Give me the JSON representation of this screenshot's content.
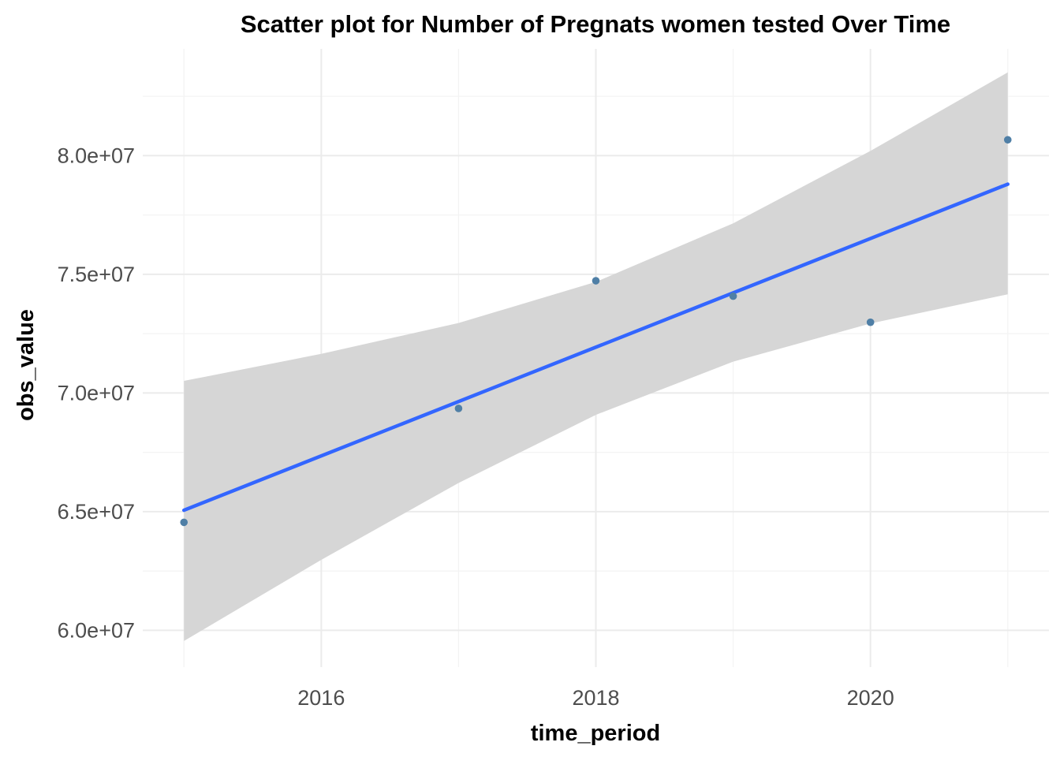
{
  "chart_data": {
    "type": "scatter",
    "title": "Scatter plot for Number of Pregnats women tested Over Time",
    "xlabel": "time_period",
    "ylabel": "obs_value",
    "x": [
      2015,
      2016,
      2017,
      2018,
      2019,
      2020,
      2021
    ],
    "y": [
      64550000,
      null,
      69350000,
      74730000,
      74080000,
      72980000,
      80670000
    ],
    "points": [
      {
        "x": 2015,
        "y": 64550000
      },
      {
        "x": 2017,
        "y": 69350000
      },
      {
        "x": 2018,
        "y": 74730000
      },
      {
        "x": 2019,
        "y": 74080000
      },
      {
        "x": 2020,
        "y": 72980000
      },
      {
        "x": 2021,
        "y": 80670000
      }
    ],
    "trend_line": {
      "method": "linear regression",
      "x": [
        2015,
        2021
      ],
      "y": [
        65060000,
        78800000
      ],
      "confidence_band": {
        "x": [
          2015,
          2016,
          2017,
          2018,
          2019,
          2020,
          2021
        ],
        "upper": [
          70510000,
          71650000,
          72950000,
          74680000,
          77150000,
          80200000,
          83510000
        ],
        "lower": [
          59550000,
          62970000,
          66210000,
          69080000,
          71320000,
          72930000,
          74160000
        ]
      }
    },
    "x_ticks": [
      2016,
      2018,
      2020
    ],
    "x_tick_labels": [
      "2016",
      "2018",
      "2020"
    ],
    "y_ticks": [
      60000000,
      65000000,
      70000000,
      75000000,
      80000000
    ],
    "y_tick_labels": [
      "6.0e+07",
      "6.5e+07",
      "7.0e+07",
      "7.5e+07",
      "8.0e+07"
    ],
    "xlim": [
      2014.7,
      2021.3
    ],
    "ylim": [
      58450000,
      84500000
    ],
    "grid": true,
    "legend": "none",
    "colors": {
      "points": "#4f7fa6",
      "trend_line": "#3366ff",
      "confidence_band": "#d6d6d6",
      "grid": "#ebebeb"
    }
  }
}
